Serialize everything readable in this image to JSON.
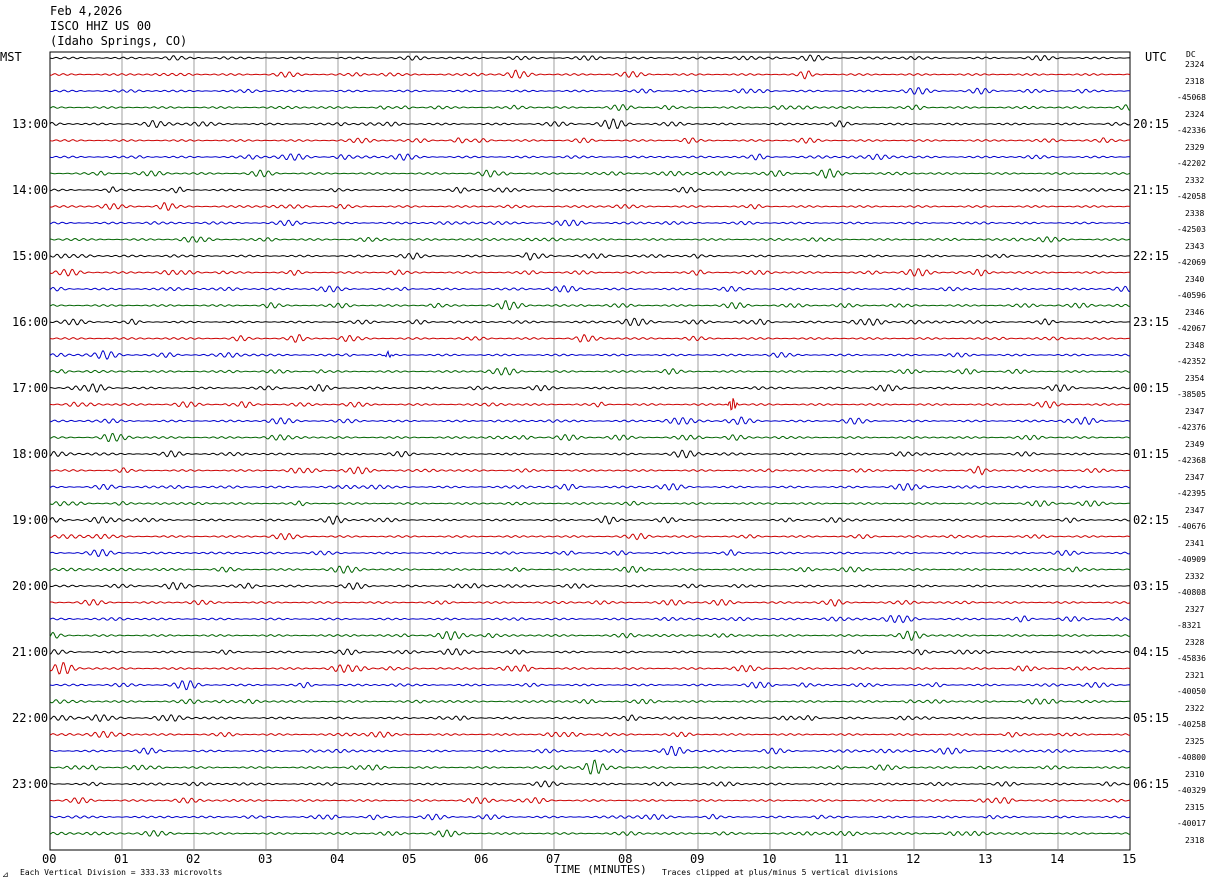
{
  "header": {
    "date": "Feb 4,2026",
    "station": "ISCO HHZ US 00",
    "location": "(Idaho Springs, CO)"
  },
  "left_axis_label": "MST",
  "right_axis_label": "UTC",
  "dc_label": "DC",
  "footer": {
    "scale_note": "Each Vertical Division =  333.33 microvolts",
    "xlabel": "TIME (MINUTES)",
    "clip_note": "Traces clipped at plus/minus 5 vertical divisions"
  },
  "chart_data": {
    "type": "line",
    "title": "",
    "xlabel": "TIME (MINUTES)",
    "xlim": [
      0,
      15
    ],
    "x_ticks": [
      "00",
      "01",
      "02",
      "03",
      "04",
      "05",
      "06",
      "07",
      "08",
      "09",
      "10",
      "11",
      "12",
      "13",
      "14",
      "15"
    ],
    "grid": true,
    "trace_colors": [
      "#000000",
      "#cc0000",
      "#0000cc",
      "#006400"
    ],
    "num_traces": 48,
    "left_time_labels": [
      "13:00",
      "14:00",
      "15:00",
      "16:00",
      "17:00",
      "18:00",
      "19:00",
      "20:00",
      "21:00",
      "22:00",
      "23:00"
    ],
    "right_time_labels": [
      "20:15",
      "21:15",
      "22:15",
      "23:15",
      "00:15",
      "01:15",
      "02:15",
      "03:15",
      "04:15",
      "05:15",
      "06:15"
    ],
    "right_values": [
      "2324",
      "2318",
      "-45068",
      "2324",
      "-42336",
      "2329",
      "-42202",
      "2332",
      "-42058",
      "2338",
      "-42503",
      "2343",
      "-42069",
      "2340",
      "-40596",
      "2346",
      "-42067",
      "2348",
      "-42352",
      "2354",
      "-38505",
      "2347",
      "-42376",
      "2349",
      "-42368",
      "2347",
      "-42395",
      "2347",
      "-40676",
      "2341",
      "-40909",
      "2332",
      "-40808",
      "2327",
      "-8321",
      "2328",
      "-45836",
      "2321",
      "-40050",
      "2322",
      "-40258",
      "2325",
      "-40800",
      "2310",
      "-40329",
      "2315",
      "-40017",
      "2318"
    ],
    "events": [
      {
        "trace": 21,
        "minute": 9.48,
        "amplitude_divisions": 2.2
      },
      {
        "trace": 18,
        "minute": 4.7,
        "amplitude_divisions": 0.8
      }
    ]
  }
}
